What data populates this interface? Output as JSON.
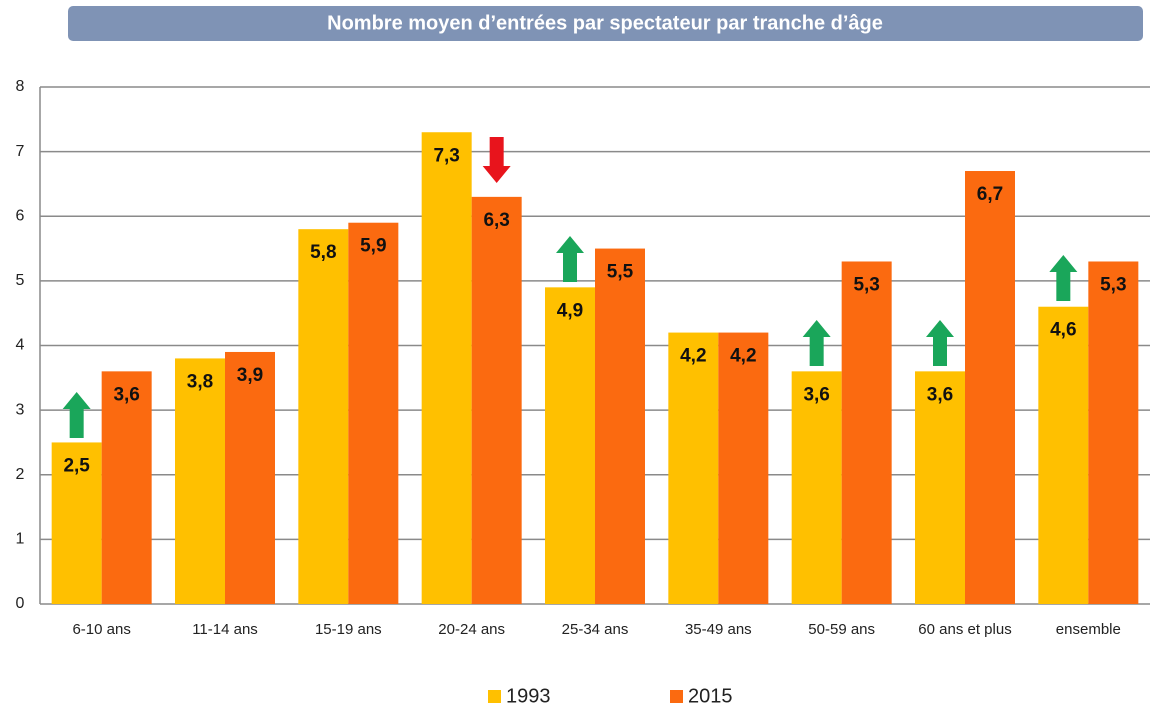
{
  "chart_data": {
    "type": "bar",
    "title": "Nombre moyen d’entrées par spectateur par tranche d’âge",
    "categories": [
      "6-10 ans",
      "11-14 ans",
      "15-19 ans",
      "20-24 ans",
      "25-34 ans",
      "35-49 ans",
      "50-59 ans",
      "60 ans et plus",
      "ensemble"
    ],
    "series": [
      {
        "name": "1993",
        "color": "#ffc000",
        "values": [
          2.5,
          3.8,
          5.8,
          7.3,
          4.9,
          4.2,
          3.6,
          3.6,
          4.6
        ],
        "value_labels": [
          "2,5",
          "3,8",
          "5,8",
          "7,3",
          "4,9",
          "4,2",
          "3,6",
          "3,6",
          "4,6"
        ]
      },
      {
        "name": "2015",
        "color": "#fb6a10",
        "values": [
          3.6,
          3.9,
          5.9,
          6.3,
          5.5,
          4.2,
          5.3,
          6.7,
          5.3
        ],
        "value_labels": [
          "3,6",
          "3,9",
          "5,9",
          "6,3",
          "5,5",
          "4,2",
          "5,3",
          "6,7",
          "5,3"
        ]
      }
    ],
    "ylim": [
      0,
      8
    ],
    "yticks": [
      0,
      1,
      2,
      3,
      4,
      5,
      6,
      7,
      8
    ],
    "grid": true,
    "legend": "bottom"
  }
}
